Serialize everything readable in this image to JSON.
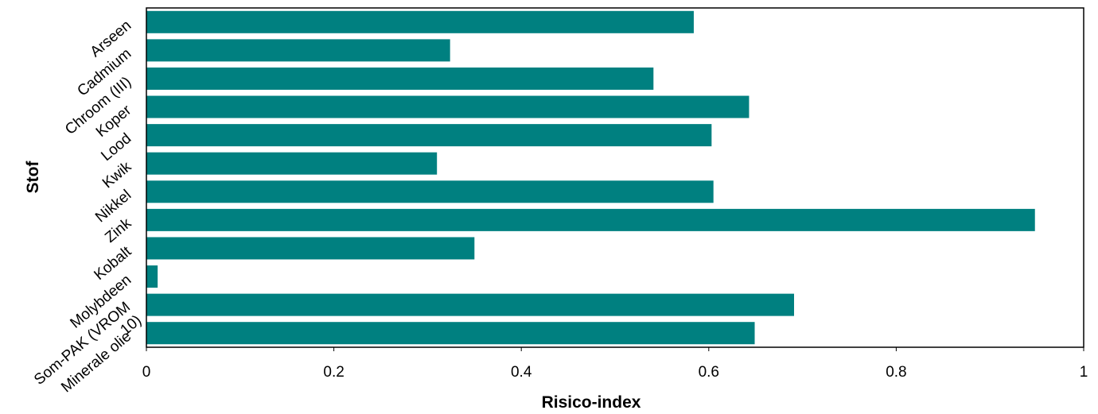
{
  "chart_data": {
    "type": "bar",
    "orientation": "horizontal",
    "categories": [
      "Arseen",
      "Cadmium",
      "Chroom (III)",
      "Koper",
      "Lood",
      "Kwik",
      "Nikkel",
      "Zink",
      "Kobalt",
      "Molybdeen",
      "Som-PAK (VROM 10)",
      "Minerale olie"
    ],
    "values": [
      0.584,
      0.324,
      0.541,
      0.643,
      0.603,
      0.31,
      0.605,
      0.948,
      0.35,
      0.012,
      0.691,
      0.649
    ],
    "xlabel": "Risico-index",
    "ylabel": "Stof",
    "xlim": [
      0,
      1
    ],
    "xticks": [
      0,
      0.2,
      0.4,
      0.6,
      0.8,
      1
    ],
    "xtick_labels": [
      "0",
      "0.2",
      "0.4",
      "0.6",
      "0.8",
      "1"
    ],
    "bar_color": "#008080",
    "grid": false,
    "legend": "none"
  }
}
